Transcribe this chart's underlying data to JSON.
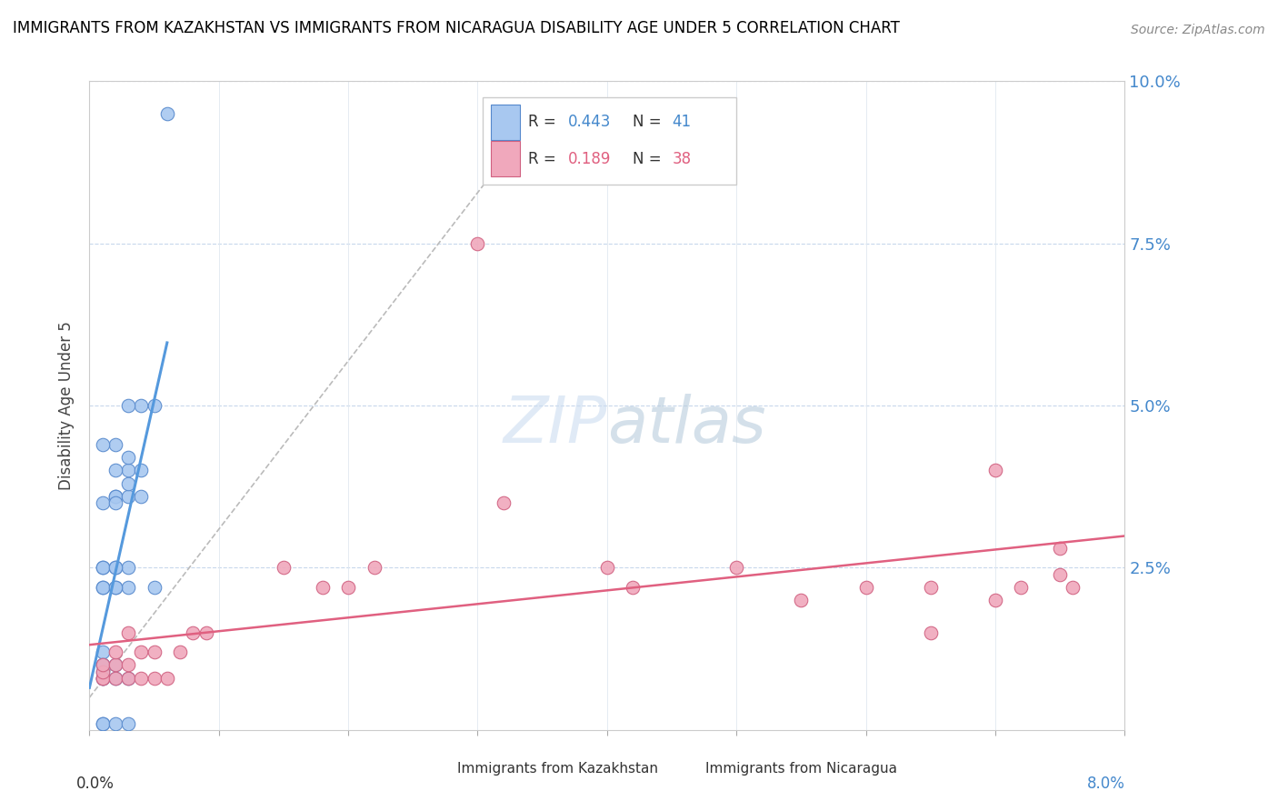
{
  "title": "IMMIGRANTS FROM KAZAKHSTAN VS IMMIGRANTS FROM NICARAGUA DISABILITY AGE UNDER 5 CORRELATION CHART",
  "source": "Source: ZipAtlas.com",
  "ylabel": "Disability Age Under 5",
  "xlim": [
    0.0,
    0.08
  ],
  "ylim": [
    0.0,
    0.1
  ],
  "color_kaz": "#a8c8f0",
  "color_nic": "#f0a8bc",
  "color_kaz_edge": "#5588cc",
  "color_nic_edge": "#d06080",
  "color_kaz_line": "#5599dd",
  "color_nic_line": "#e06080",
  "watermark_color": "#ddeeff",
  "kaz_x": [
    0.001,
    0.001,
    0.001,
    0.001,
    0.001,
    0.001,
    0.001,
    0.001,
    0.002,
    0.002,
    0.002,
    0.002,
    0.002,
    0.002,
    0.002,
    0.003,
    0.003,
    0.003,
    0.003,
    0.003,
    0.003,
    0.004,
    0.004,
    0.004,
    0.005,
    0.005,
    0.001,
    0.002,
    0.003,
    0.001,
    0.002,
    0.001,
    0.002,
    0.001,
    0.001,
    0.002,
    0.003,
    0.001,
    0.002,
    0.003,
    0.006
  ],
  "kaz_y": [
    0.008,
    0.008,
    0.009,
    0.01,
    0.022,
    0.025,
    0.035,
    0.001,
    0.008,
    0.036,
    0.036,
    0.044,
    0.022,
    0.025,
    0.035,
    0.036,
    0.038,
    0.04,
    0.042,
    0.025,
    0.022,
    0.036,
    0.04,
    0.05,
    0.05,
    0.022,
    0.044,
    0.04,
    0.05,
    0.025,
    0.025,
    0.022,
    0.022,
    0.012,
    0.01,
    0.01,
    0.008,
    0.001,
    0.001,
    0.001,
    0.095
  ],
  "nic_x": [
    0.001,
    0.001,
    0.001,
    0.001,
    0.002,
    0.002,
    0.002,
    0.003,
    0.003,
    0.003,
    0.004,
    0.004,
    0.005,
    0.005,
    0.006,
    0.007,
    0.008,
    0.009,
    0.015,
    0.018,
    0.02,
    0.022,
    0.03,
    0.032,
    0.04,
    0.042,
    0.05,
    0.055,
    0.06,
    0.065,
    0.07,
    0.072,
    0.075,
    0.076,
    0.065,
    0.07,
    0.075
  ],
  "nic_y": [
    0.008,
    0.008,
    0.009,
    0.01,
    0.008,
    0.01,
    0.012,
    0.008,
    0.01,
    0.015,
    0.008,
    0.012,
    0.008,
    0.012,
    0.008,
    0.012,
    0.015,
    0.015,
    0.025,
    0.022,
    0.022,
    0.025,
    0.075,
    0.035,
    0.025,
    0.022,
    0.025,
    0.02,
    0.022,
    0.015,
    0.04,
    0.022,
    0.024,
    0.022,
    0.022,
    0.02,
    0.028
  ]
}
